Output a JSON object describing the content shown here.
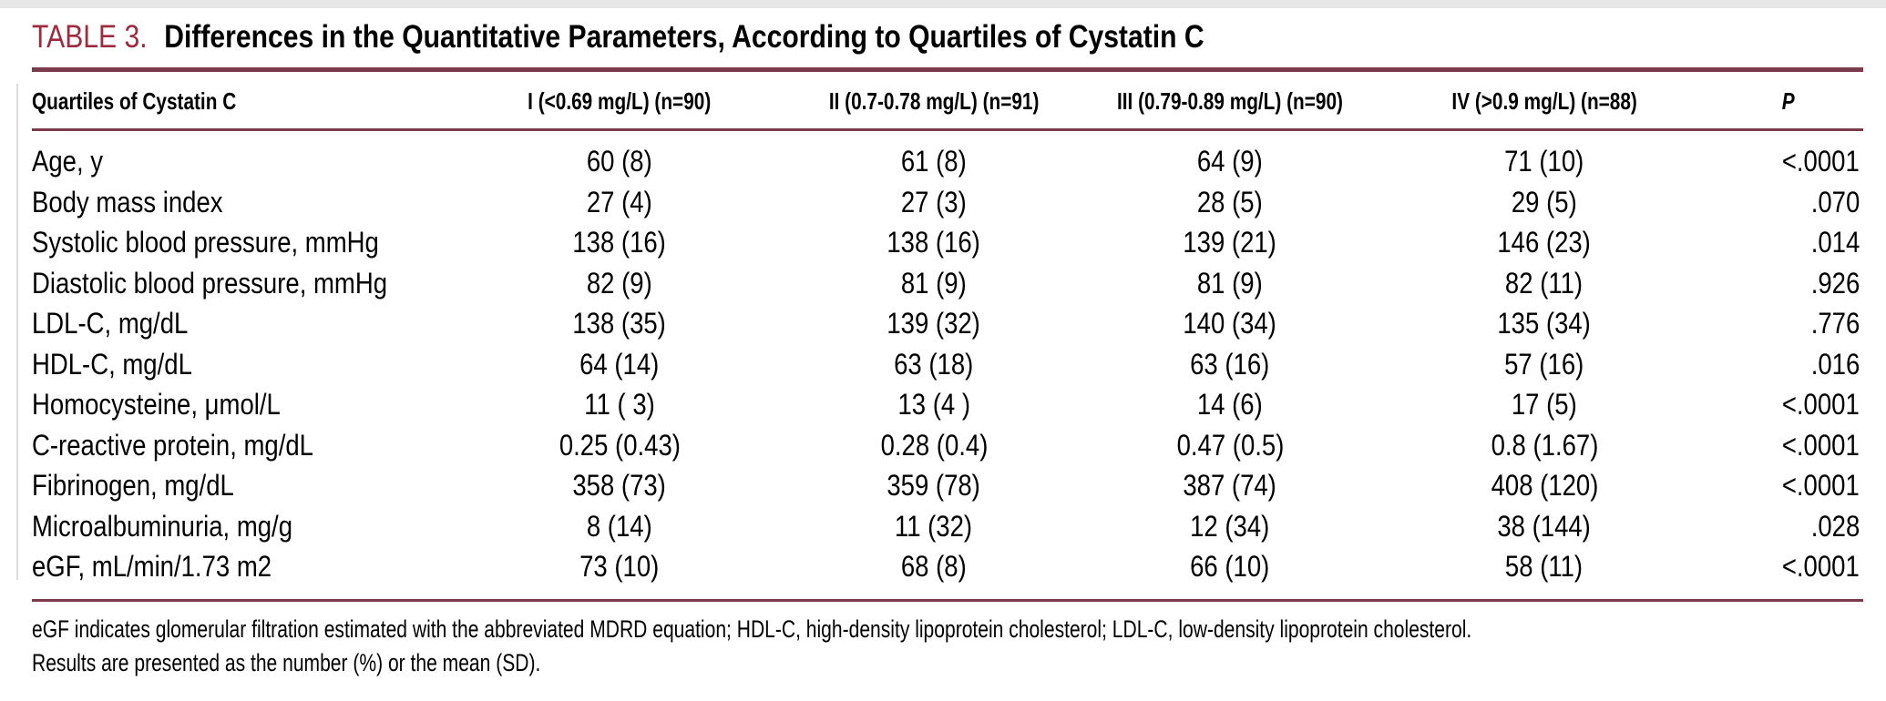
{
  "colors": {
    "accent_red": "#9c2b3f",
    "rule_maroon": "#7a3b4d",
    "text": "#000000"
  },
  "table": {
    "label": "TABLE 3.",
    "caption": "Differences in the Quantitative Parameters, According to Quartiles of Cystatin C",
    "columns": [
      "Quartiles of Cystatin C",
      "I (<0.69 mg/L) (n=90)",
      "II (0.7-0.78 mg/L) (n=91)",
      "III (0.79-0.89 mg/L) (n=90)",
      "IV (>0.9 mg/L) (n=88)",
      "P"
    ],
    "rows": [
      {
        "parameter": "Age, y",
        "values": [
          "60 (8)",
          "61 (8)",
          "64 (9)",
          "71 (10)"
        ],
        "p": "<.0001"
      },
      {
        "parameter": "Body mass index",
        "values": [
          "27 (4)",
          "27 (3)",
          "28 (5)",
          "29 (5)"
        ],
        "p": ".070"
      },
      {
        "parameter": "Systolic blood pressure, mmHg",
        "values": [
          "138 (16)",
          "138 (16)",
          "139 (21)",
          "146 (23)"
        ],
        "p": ".014"
      },
      {
        "parameter": "Diastolic blood pressure, mmHg",
        "values": [
          "82 (9)",
          "81 (9)",
          "81 (9)",
          "82 (11)"
        ],
        "p": ".926"
      },
      {
        "parameter": "LDL-C, mg/dL",
        "values": [
          "138 (35)",
          "139 (32)",
          "140 (34)",
          "135 (34)"
        ],
        "p": ".776"
      },
      {
        "parameter": "HDL-C, mg/dL",
        "values": [
          "64 (14)",
          "63 (18)",
          "63 (16)",
          "57 (16)"
        ],
        "p": ".016"
      },
      {
        "parameter": "Homocysteine, μmol/L",
        "values": [
          "11 ( 3)",
          "13 (4 )",
          "14 (6)",
          "17 (5)"
        ],
        "p": "<.0001"
      },
      {
        "parameter": "C-reactive protein, mg/dL",
        "values": [
          "0.25 (0.43)",
          "0.28 (0.4)",
          "0.47 (0.5)",
          "0.8 (1.67)"
        ],
        "p": "<.0001"
      },
      {
        "parameter": "Fibrinogen, mg/dL",
        "values": [
          "358 (73)",
          "359 (78)",
          "387 (74)",
          "408 (120)"
        ],
        "p": "<.0001"
      },
      {
        "parameter": "Microalbuminuria, mg/g",
        "values": [
          "8 (14)",
          "11 (32)",
          "12 (34)",
          "38 (144)"
        ],
        "p": ".028"
      },
      {
        "parameter": "eGF, mL/min/1.73 m2",
        "values": [
          "73 (10)",
          "68 (8)",
          "66 (10)",
          "58 (11)"
        ],
        "p": "<.0001"
      }
    ],
    "footnotes": [
      "eGF indicates glomerular filtration estimated with the abbreviated MDRD equation; HDL-C, high-density lipoprotein cholesterol; LDL-C, low-density lipoprotein cholesterol.",
      "Results are presented as the number (%) or the mean (SD)."
    ]
  }
}
